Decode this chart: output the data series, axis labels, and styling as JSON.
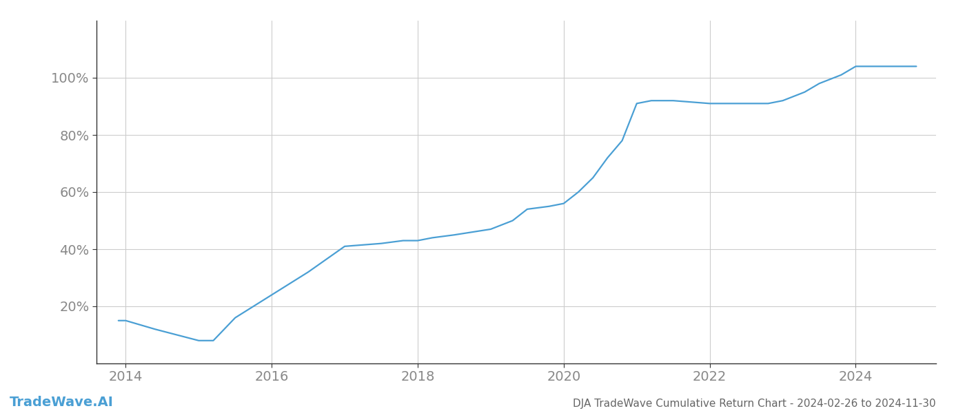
{
  "title": "DJA TradeWave Cumulative Return Chart - 2024-02-26 to 2024-11-30",
  "watermark": "TradeWave.AI",
  "line_color": "#4a9fd4",
  "background_color": "#ffffff",
  "grid_color": "#cccccc",
  "x_years": [
    2013.9,
    2014.0,
    2014.4,
    2015.0,
    2015.2,
    2015.5,
    2016.0,
    2016.5,
    2017.0,
    2017.5,
    2017.8,
    2018.0,
    2018.2,
    2018.5,
    2019.0,
    2019.3,
    2019.5,
    2019.8,
    2020.0,
    2020.2,
    2020.4,
    2020.6,
    2020.8,
    2021.0,
    2021.2,
    2021.5,
    2022.0,
    2022.3,
    2022.8,
    2023.0,
    2023.3,
    2023.5,
    2023.8,
    2024.0,
    2024.5,
    2024.83
  ],
  "y_values": [
    15,
    15,
    12,
    8,
    8,
    16,
    24,
    32,
    41,
    42,
    43,
    43,
    44,
    45,
    47,
    50,
    54,
    55,
    56,
    60,
    65,
    72,
    78,
    91,
    92,
    92,
    91,
    91,
    91,
    92,
    95,
    98,
    101,
    104,
    104,
    104
  ],
  "xlim": [
    2013.6,
    2025.1
  ],
  "ylim": [
    0,
    120
  ],
  "yticks": [
    20,
    40,
    60,
    80,
    100
  ],
  "ytick_labels": [
    "20%",
    "40%",
    "60%",
    "80%",
    "100%"
  ],
  "xticks": [
    2014,
    2016,
    2018,
    2020,
    2022,
    2024
  ],
  "tick_color": "#888888",
  "title_color": "#666666",
  "watermark_color": "#4a9fd4",
  "line_width": 1.6,
  "title_fontsize": 11,
  "tick_fontsize": 14,
  "watermark_fontsize": 14,
  "spine_color": "#333333"
}
